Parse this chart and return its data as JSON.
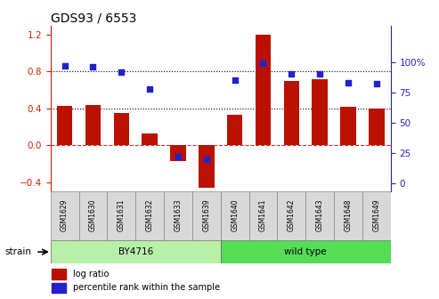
{
  "title": "GDS93 / 6553",
  "samples": [
    "GSM1629",
    "GSM1630",
    "GSM1631",
    "GSM1632",
    "GSM1633",
    "GSM1639",
    "GSM1640",
    "GSM1641",
    "GSM1642",
    "GSM1643",
    "GSM1648",
    "GSM1649"
  ],
  "log_ratio": [
    0.43,
    0.44,
    0.35,
    0.13,
    -0.17,
    -0.46,
    0.33,
    1.2,
    0.7,
    0.72,
    0.42,
    0.4
  ],
  "percentile": [
    97,
    96,
    92,
    78,
    22,
    20,
    85,
    99,
    90,
    90,
    83,
    82
  ],
  "groups": [
    {
      "label": "BY4716",
      "start": 0,
      "end": 5,
      "color": "#b8f0a8"
    },
    {
      "label": "wild type",
      "start": 6,
      "end": 11,
      "color": "#55dd55"
    }
  ],
  "bar_color": "#bb1100",
  "dot_color": "#2222cc",
  "bar_width": 0.55,
  "ylim_left": [
    -0.5,
    1.3
  ],
  "ylim_right": [
    -6.25,
    130
  ],
  "yticks_left": [
    -0.4,
    0.0,
    0.4,
    0.8,
    1.2
  ],
  "yticks_right": [
    0,
    25,
    50,
    75,
    100
  ],
  "hlines": [
    0.4,
    0.8
  ],
  "hline_zero_color": "#cc3333",
  "left_axis_color": "#cc2200",
  "right_axis_color": "#2222cc",
  "background_color": "#ffffff",
  "legend_log_ratio": "log ratio",
  "legend_percentile": "percentile rank within the sample",
  "strain_label": "strain",
  "label_box_color": "#d8d8d8",
  "title_fontsize": 10,
  "tick_fontsize": 7.5
}
